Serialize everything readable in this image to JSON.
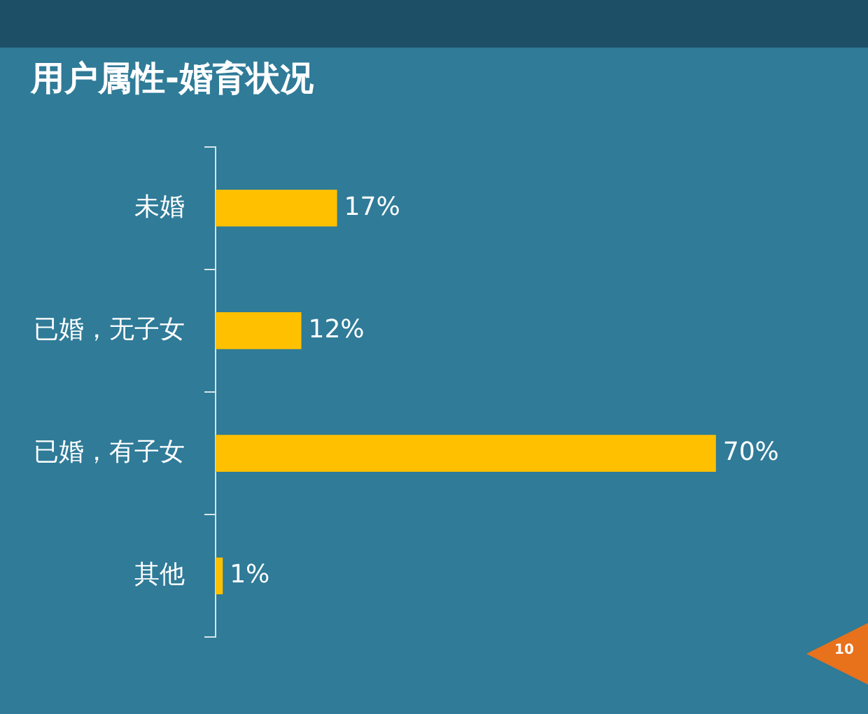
{
  "chart_data": {
    "type": "bar",
    "orientation": "horizontal",
    "title": "用户属性-婚育状况",
    "categories": [
      "未婚",
      "已婚，无子女",
      "已婚，有子女",
      "其他"
    ],
    "values": [
      17,
      12,
      70,
      1
    ],
    "value_labels": [
      "17%",
      "12%",
      "70%",
      "1%"
    ],
    "color": "#ffc000",
    "annotations": [
      "10"
    ]
  }
}
